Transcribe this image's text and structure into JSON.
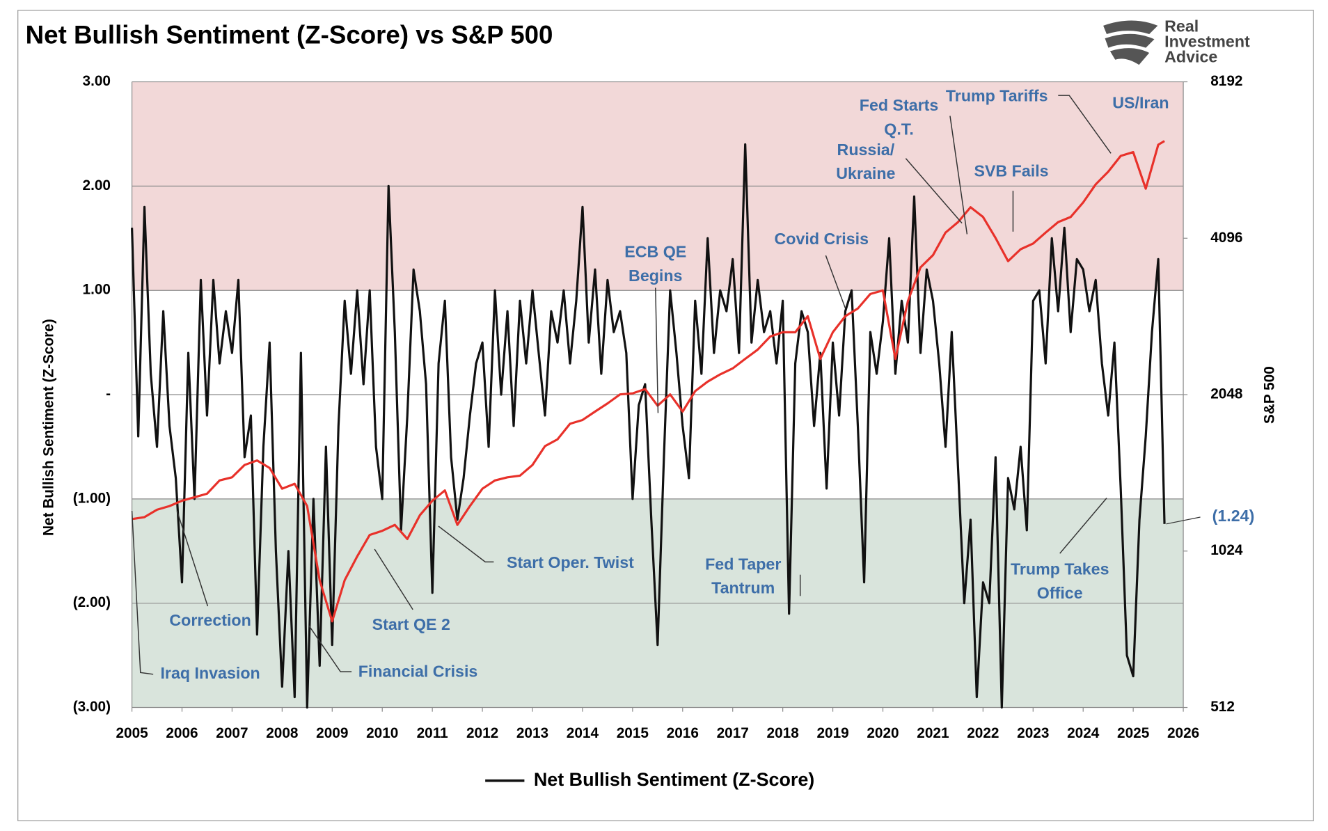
{
  "chart_data": {
    "type": "line",
    "title": "Net Bullish Sentiment (Z-Score) vs S&P 500",
    "logo": [
      "Real",
      "Investment",
      "Advice"
    ],
    "ylabel": "Net Bullish Sentiment (Z-Score)",
    "y2label": "S&P 500",
    "xlim": [
      2005,
      2026
    ],
    "xticks": [
      2005,
      2006,
      2007,
      2008,
      2009,
      2010,
      2011,
      2012,
      2013,
      2014,
      2015,
      2016,
      2017,
      2018,
      2019,
      2020,
      2021,
      2022,
      2023,
      2024,
      2025,
      2026
    ],
    "ylim": [
      -3,
      3
    ],
    "yticks": [
      {
        "value": -3,
        "label": "(3.00)"
      },
      {
        "value": -2,
        "label": "(2.00)"
      },
      {
        "value": -1,
        "label": "(1.00)"
      },
      {
        "value": 0,
        "label": "-"
      },
      {
        "value": 1,
        "label": "1.00"
      },
      {
        "value": 2,
        "label": "2.00"
      },
      {
        "value": 3,
        "label": "3.00"
      }
    ],
    "y2lim": [
      512,
      8192
    ],
    "y2ticks": [
      512,
      1024,
      2048,
      4096,
      8192
    ],
    "y2_log": true,
    "grid": true,
    "bands": [
      {
        "from": 1,
        "to": 3,
        "color": "#f2d8d8"
      },
      {
        "from": -3,
        "to": -1,
        "color": "#d9e4dc"
      }
    ],
    "legend": "bottom",
    "series": [
      {
        "name": "Net Bullish Sentiment (Z-Score)",
        "color": "#111111",
        "x": [
          2005,
          2005.125,
          2005.25,
          2005.375,
          2005.5,
          2005.625,
          2005.75,
          2005.875,
          2006,
          2006.125,
          2006.25,
          2006.375,
          2006.5,
          2006.625,
          2006.75,
          2006.875,
          2007,
          2007.125,
          2007.25,
          2007.375,
          2007.5,
          2007.625,
          2007.75,
          2007.875,
          2008,
          2008.125,
          2008.25,
          2008.375,
          2008.5,
          2008.625,
          2008.75,
          2008.875,
          2009,
          2009.125,
          2009.25,
          2009.375,
          2009.5,
          2009.625,
          2009.75,
          2009.875,
          2010,
          2010.125,
          2010.25,
          2010.375,
          2010.5,
          2010.625,
          2010.75,
          2010.875,
          2011,
          2011.125,
          2011.25,
          2011.375,
          2011.5,
          2011.625,
          2011.75,
          2011.875,
          2012,
          2012.125,
          2012.25,
          2012.375,
          2012.5,
          2012.625,
          2012.75,
          2012.875,
          2013,
          2013.125,
          2013.25,
          2013.375,
          2013.5,
          2013.625,
          2013.75,
          2013.875,
          2014,
          2014.125,
          2014.25,
          2014.375,
          2014.5,
          2014.625,
          2014.75,
          2014.875,
          2015,
          2015.125,
          2015.25,
          2015.375,
          2015.5,
          2015.625,
          2015.75,
          2015.875,
          2016,
          2016.125,
          2016.25,
          2016.375,
          2016.5,
          2016.625,
          2016.75,
          2016.875,
          2017,
          2017.125,
          2017.25,
          2017.375,
          2017.5,
          2017.625,
          2017.75,
          2017.875,
          2018,
          2018.125,
          2018.25,
          2018.375,
          2018.5,
          2018.625,
          2018.75,
          2018.875,
          2019,
          2019.125,
          2019.25,
          2019.375,
          2019.5,
          2019.625,
          2019.75,
          2019.875,
          2020,
          2020.125,
          2020.25,
          2020.375,
          2020.5,
          2020.625,
          2020.75,
          2020.875,
          2021,
          2021.125,
          2021.25,
          2021.375,
          2021.5,
          2021.625,
          2021.75,
          2021.875,
          2022,
          2022.125,
          2022.25,
          2022.375,
          2022.5,
          2022.625,
          2022.75,
          2022.875,
          2023,
          2023.125,
          2023.25,
          2023.375,
          2023.5,
          2023.625,
          2023.75,
          2023.875,
          2024,
          2024.125,
          2024.25,
          2024.375,
          2024.5,
          2024.625,
          2024.75,
          2024.875,
          2025,
          2025.125,
          2025.25,
          2025.375,
          2025.5,
          2025.625
        ],
        "values": [
          1.6,
          -0.4,
          1.8,
          0.2,
          -0.5,
          0.8,
          -0.3,
          -0.8,
          -1.8,
          0.4,
          -1.0,
          1.1,
          -0.2,
          1.1,
          0.3,
          0.8,
          0.4,
          1.1,
          -0.6,
          -0.2,
          -2.3,
          -0.5,
          0.5,
          -1.5,
          -2.8,
          -1.5,
          -2.9,
          0.4,
          -3.0,
          -1.0,
          -2.6,
          -0.5,
          -2.4,
          -0.3,
          0.9,
          0.2,
          1.0,
          0.1,
          1.0,
          -0.5,
          -1.0,
          2.0,
          0.6,
          -1.3,
          -0.2,
          1.2,
          0.8,
          0.1,
          -1.9,
          0.3,
          0.9,
          -0.6,
          -1.2,
          -0.8,
          -0.2,
          0.3,
          0.5,
          -0.5,
          1.0,
          0.0,
          0.8,
          -0.3,
          0.9,
          0.3,
          1.0,
          0.4,
          -0.2,
          0.8,
          0.5,
          1.0,
          0.3,
          0.9,
          1.8,
          0.5,
          1.2,
          0.2,
          1.1,
          0.6,
          0.8,
          0.4,
          -1.0,
          -0.1,
          0.1,
          -1.2,
          -2.4,
          -0.6,
          1.0,
          0.4,
          -0.3,
          -0.8,
          0.9,
          0.2,
          1.5,
          0.4,
          1.0,
          0.8,
          1.3,
          0.4,
          2.4,
          0.5,
          1.1,
          0.6,
          0.8,
          0.3,
          0.9,
          -2.1,
          0.3,
          0.8,
          0.6,
          -0.3,
          0.4,
          -0.9,
          0.5,
          -0.2,
          0.8,
          1.0,
          -0.3,
          -1.8,
          0.6,
          0.2,
          0.7,
          1.5,
          0.2,
          0.9,
          0.5,
          1.9,
          0.4,
          1.2,
          0.9,
          0.3,
          -0.5,
          0.6,
          -0.7,
          -2.0,
          -1.2,
          -2.9,
          -1.8,
          -2.0,
          -0.6,
          -3.0,
          -0.8,
          -1.1,
          -0.5,
          -1.3,
          0.9,
          1.0,
          0.3,
          1.5,
          0.8,
          1.6,
          0.6,
          1.3,
          1.2,
          0.8,
          1.1,
          0.3,
          -0.2,
          0.5,
          -0.9,
          -2.5,
          -2.7,
          -1.2,
          -0.4,
          0.6,
          1.3,
          -1.24
        ]
      },
      {
        "color": "#e8312a",
        "axis": "y2",
        "x": [
          2005,
          2005.25,
          2005.5,
          2005.75,
          2006,
          2006.25,
          2006.5,
          2006.75,
          2007,
          2007.25,
          2007.5,
          2007.75,
          2008,
          2008.25,
          2008.5,
          2008.75,
          2009,
          2009.25,
          2009.5,
          2009.75,
          2010,
          2010.25,
          2010.5,
          2010.75,
          2011,
          2011.25,
          2011.5,
          2011.75,
          2012,
          2012.25,
          2012.5,
          2012.75,
          2013,
          2013.25,
          2013.5,
          2013.75,
          2014,
          2014.25,
          2014.5,
          2014.75,
          2015,
          2015.25,
          2015.5,
          2015.75,
          2016,
          2016.25,
          2016.5,
          2016.75,
          2017,
          2017.25,
          2017.5,
          2017.75,
          2018,
          2018.25,
          2018.5,
          2018.75,
          2019,
          2019.25,
          2019.5,
          2019.75,
          2020,
          2020.25,
          2020.5,
          2020.75,
          2021,
          2021.25,
          2021.5,
          2021.75,
          2022,
          2022.25,
          2022.5,
          2022.75,
          2023,
          2023.25,
          2023.5,
          2023.75,
          2024,
          2024.25,
          2024.5,
          2024.75,
          2025,
          2025.25,
          2025.5,
          2025.625
        ],
        "values": [
          1180,
          1190,
          1230,
          1250,
          1280,
          1300,
          1320,
          1400,
          1420,
          1500,
          1530,
          1480,
          1350,
          1380,
          1250,
          900,
          750,
          900,
          1000,
          1100,
          1120,
          1150,
          1080,
          1200,
          1280,
          1340,
          1150,
          1250,
          1350,
          1400,
          1420,
          1430,
          1500,
          1630,
          1680,
          1800,
          1830,
          1900,
          1970,
          2050,
          2060,
          2100,
          1950,
          2050,
          1900,
          2080,
          2170,
          2240,
          2300,
          2400,
          2500,
          2650,
          2700,
          2700,
          2900,
          2400,
          2700,
          2900,
          3000,
          3200,
          3250,
          2400,
          3100,
          3600,
          3800,
          4200,
          4400,
          4700,
          4500,
          4100,
          3700,
          3900,
          4000,
          4200,
          4400,
          4500,
          4800,
          5200,
          5500,
          5900,
          6000,
          5100,
          6200,
          6300
        ]
      }
    ],
    "end_label": {
      "value": -1.24,
      "label": "(1.24)"
    },
    "annotations": [
      {
        "lines": [
          "Iraq Invasion"
        ]
      },
      {
        "lines": [
          "Correction"
        ]
      },
      {
        "lines": [
          "Financial Crisis"
        ]
      },
      {
        "lines": [
          "Start QE 2"
        ]
      },
      {
        "lines": [
          "Start Oper. Twist"
        ]
      },
      {
        "lines": [
          "ECB QE",
          "Begins"
        ]
      },
      {
        "lines": [
          "Fed Taper",
          "Tantrum"
        ]
      },
      {
        "lines": [
          "Covid Crisis"
        ]
      },
      {
        "lines": [
          "Russia/",
          "Ukraine"
        ]
      },
      {
        "lines": [
          "Fed Starts",
          "Q.T."
        ]
      },
      {
        "lines": [
          "Trump Tariffs"
        ]
      },
      {
        "lines": [
          "SVB Fails"
        ]
      },
      {
        "lines": [
          "US/Iran"
        ]
      },
      {
        "lines": [
          "Trump Takes",
          "Office"
        ]
      }
    ]
  }
}
